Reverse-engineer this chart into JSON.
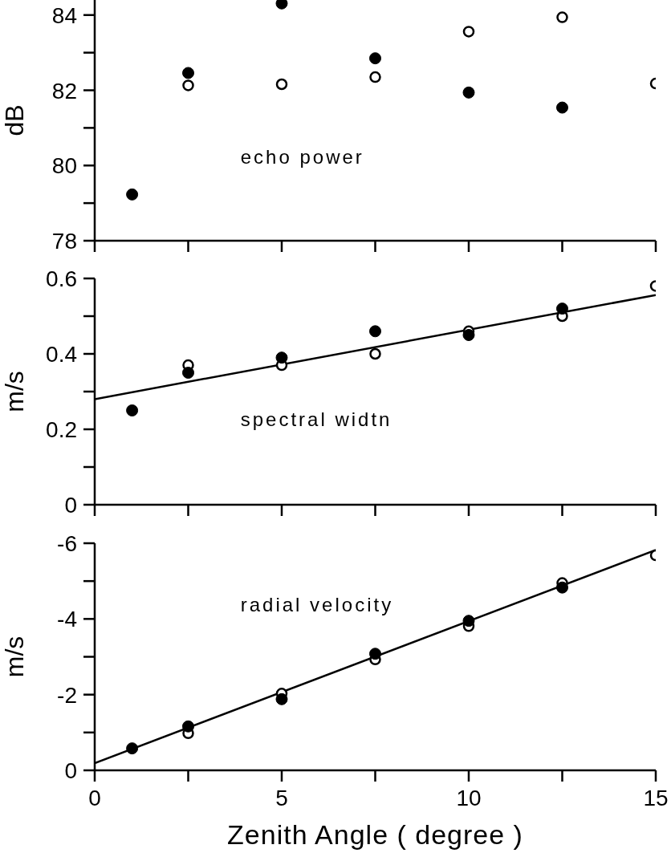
{
  "chart_data": [
    {
      "type": "scatter",
      "ylabel": "dB",
      "annotations": [
        "echo power"
      ],
      "xlim": [
        0,
        15
      ],
      "xticks": [
        0,
        {
          "value": 2.5,
          "label": null
        },
        5,
        {
          "value": 7.5,
          "label": null
        },
        10,
        {
          "value": 12.5,
          "label": null
        },
        15
      ],
      "ylim": [
        78,
        84.4
      ],
      "yticks": [
        78,
        {
          "value": 79,
          "label": null
        },
        80,
        {
          "value": 81,
          "label": null
        },
        82,
        {
          "value": 83,
          "label": null
        },
        84
      ],
      "tick_labels": "y",
      "marker": "circle",
      "series": [
        {
          "type": "scatter",
          "color": "#000000",
          "x": [
            1,
            2.5,
            5,
            7.5,
            10,
            12.5
          ],
          "values": [
            79.23,
            82.46,
            84.31,
            82.85,
            81.94,
            81.54
          ]
        },
        {
          "type": "scatter",
          "color": "#000000",
          "x": [
            2.5,
            5,
            7.5,
            10,
            12.5,
            15
          ],
          "values": [
            82.13,
            82.16,
            82.35,
            83.56,
            83.94,
            82.18
          ]
        }
      ]
    },
    {
      "type": "scatter",
      "ylabel": "m/s",
      "annotations": [
        "spectral widtn"
      ],
      "xlim": [
        0,
        15
      ],
      "xticks": [
        0,
        {
          "value": 2.5,
          "label": null
        },
        5,
        {
          "value": 7.5,
          "label": null
        },
        10,
        {
          "value": 12.5,
          "label": null
        },
        15
      ],
      "ylim": [
        0,
        0.6
      ],
      "yticks": [
        0,
        {
          "value": 0.1,
          "label": null
        },
        0.2,
        {
          "value": 0.3,
          "label": null
        },
        0.4,
        {
          "value": 0.5,
          "label": null
        },
        0.6
      ],
      "tick_labels": "y",
      "marker": "circle",
      "series": [
        {
          "type": "scatter",
          "color": "#000000",
          "x": [
            1,
            2.5,
            5,
            7.5,
            10,
            12.5
          ],
          "values": [
            0.25,
            0.35,
            0.39,
            0.46,
            0.45,
            0.52
          ]
        },
        {
          "type": "scatter",
          "color": "#000000",
          "x": [
            2.5,
            5,
            7.5,
            10,
            12.5,
            15
          ],
          "values": [
            0.37,
            0.37,
            0.4,
            0.46,
            0.5,
            0.58
          ]
        },
        {
          "type": "line",
          "color": "#000000",
          "marker": "none",
          "x": [
            0,
            15
          ],
          "values": [
            0.28,
            0.556
          ]
        }
      ]
    },
    {
      "type": "scatter",
      "ylabel": "m/s",
      "xlabel": "Zenith Angle ( degree )",
      "annotations": [
        "radial velocity"
      ],
      "xlim": [
        0,
        15
      ],
      "xticks": [
        0,
        {
          "value": 2.5,
          "label": null
        },
        5,
        {
          "value": 7.5,
          "label": null
        },
        10,
        {
          "value": 12.5,
          "label": null
        },
        15
      ],
      "ylim": [
        0,
        -6
      ],
      "yticks": [
        0,
        {
          "value": -1,
          "label": null
        },
        -2,
        {
          "value": -3,
          "label": null
        },
        -4,
        {
          "value": -5,
          "label": null
        },
        -6
      ],
      "marker": "circle",
      "series": [
        {
          "type": "scatter",
          "color": "#000000",
          "x": [
            1,
            2.5,
            5,
            7.5,
            10,
            12.5
          ],
          "values": [
            -0.58,
            -1.16,
            -1.88,
            -3.08,
            -3.95,
            -4.83
          ]
        },
        {
          "type": "scatter",
          "color": "#000000",
          "x": [
            2.5,
            5,
            7.5,
            10,
            12.5,
            15
          ],
          "values": [
            -0.98,
            -2.03,
            -2.93,
            -3.81,
            -4.95,
            -5.68
          ]
        },
        {
          "type": "line",
          "color": "#000000",
          "marker": "none",
          "x": [
            0,
            15
          ],
          "values": [
            -0.19,
            -5.82
          ]
        }
      ]
    }
  ]
}
